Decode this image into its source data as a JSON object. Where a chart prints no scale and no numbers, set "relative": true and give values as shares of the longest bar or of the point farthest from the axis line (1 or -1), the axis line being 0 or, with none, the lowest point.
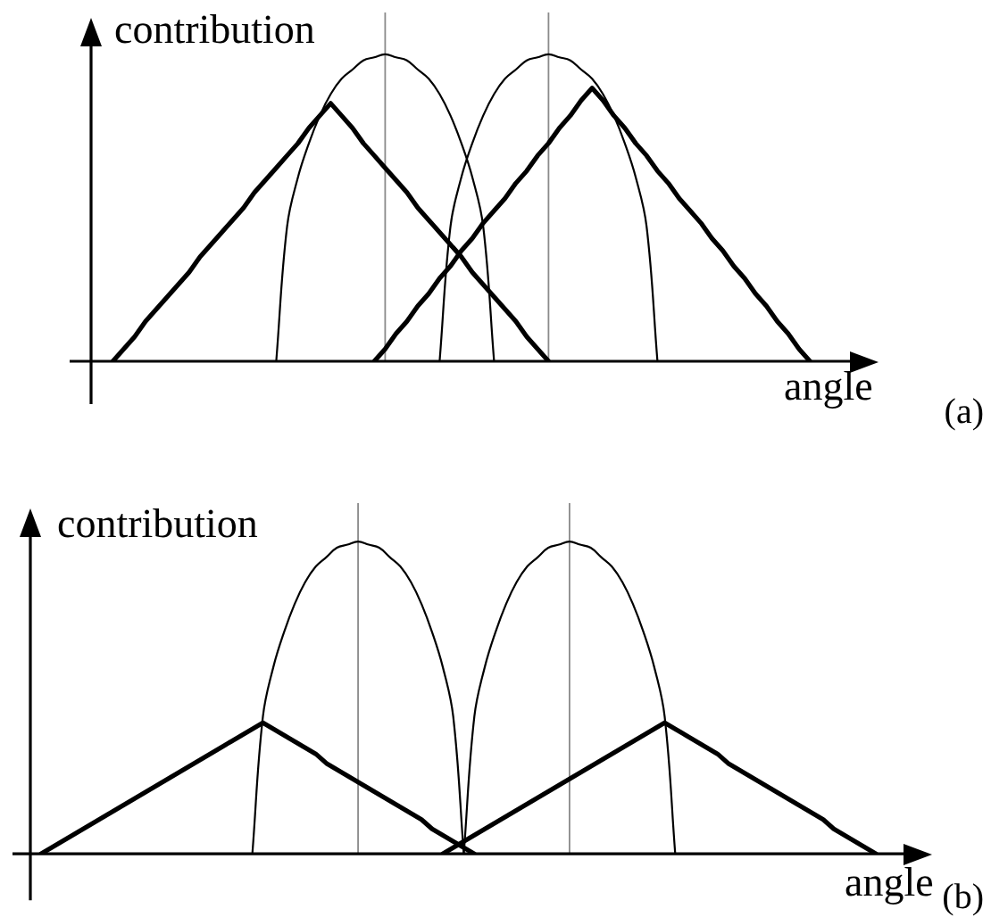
{
  "chart_data": [
    {
      "type": "line",
      "xlabel": "angle",
      "ylabel": "contribution",
      "annotations": [
        "(a)"
      ],
      "relative": true,
      "tick_labels": false,
      "categories": [
        null,
        null,
        null,
        null,
        null,
        null,
        null,
        null,
        null,
        null,
        null,
        null,
        null,
        null,
        null,
        null,
        null,
        null,
        null,
        null,
        null,
        null,
        null,
        null,
        null,
        null,
        null,
        null,
        null,
        null,
        null,
        null,
        null,
        null,
        null,
        null,
        null,
        null,
        null,
        null,
        null,
        null,
        null,
        null,
        null,
        null,
        null,
        null,
        null,
        null,
        null,
        null,
        null,
        null,
        null,
        null,
        null,
        null,
        null,
        null,
        null,
        null,
        null,
        null,
        null,
        null,
        null,
        null,
        null,
        null,
        null
      ],
      "series": [
        {
          "color": "#000000",
          "values": [
            null,
            null,
            0,
            0.04,
            0.08,
            0.13,
            0.17,
            0.21,
            0.25,
            0.29,
            0.34,
            0.38,
            0.42,
            0.46,
            0.5,
            0.55,
            0.59,
            0.63,
            0.67,
            0.71,
            0.76,
            0.8,
            0.84,
            0.8,
            0.76,
            0.71,
            0.67,
            0.63,
            0.59,
            0.55,
            0.5,
            0.46,
            0.42,
            0.38,
            0.34,
            0.29,
            0.25,
            0.21,
            0.17,
            0.13,
            0.08,
            0.04,
            0,
            null,
            null,
            null,
            null,
            null,
            null,
            null,
            null,
            null,
            null,
            null,
            null,
            null,
            null,
            null,
            null,
            null,
            null,
            null,
            null,
            null,
            null,
            null,
            null,
            null,
            null,
            null,
            null
          ]
        },
        {
          "color": "#000000",
          "values": [
            null,
            null,
            null,
            null,
            null,
            null,
            null,
            null,
            null,
            null,
            null,
            null,
            null,
            null,
            null,
            null,
            null,
            null,
            null,
            null,
            null,
            null,
            null,
            null,
            null,
            null,
            0,
            0.04,
            0.09,
            0.13,
            0.18,
            0.22,
            0.27,
            0.31,
            0.36,
            0.4,
            0.45,
            0.49,
            0.53,
            0.58,
            0.62,
            0.67,
            0.71,
            0.76,
            0.8,
            0.85,
            0.89,
            0.85,
            0.8,
            0.76,
            0.71,
            0.67,
            0.62,
            0.58,
            0.53,
            0.49,
            0.45,
            0.4,
            0.36,
            0.31,
            0.27,
            0.22,
            0.18,
            0.13,
            0.09,
            0.04,
            0,
            null,
            null,
            null,
            null
          ]
        },
        {
          "color": "#000000",
          "values": [
            null,
            null,
            null,
            null,
            null,
            null,
            null,
            null,
            null,
            null,
            null,
            null,
            null,
            null,
            null,
            null,
            null,
            0,
            0.44,
            0.6,
            0.71,
            0.8,
            0.87,
            0.92,
            0.95,
            0.98,
            0.99,
            1,
            0.99,
            0.98,
            0.95,
            0.92,
            0.87,
            0.8,
            0.71,
            0.6,
            0.44,
            0,
            null,
            null,
            null,
            null,
            null,
            null,
            null,
            null,
            null,
            null,
            null,
            null,
            null,
            null,
            null,
            null,
            null,
            null,
            null,
            null,
            null,
            null,
            null,
            null,
            null,
            null,
            null,
            null,
            null,
            null,
            null,
            null,
            null
          ]
        },
        {
          "color": "#000000",
          "values": [
            null,
            null,
            null,
            null,
            null,
            null,
            null,
            null,
            null,
            null,
            null,
            null,
            null,
            null,
            null,
            null,
            null,
            null,
            null,
            null,
            null,
            null,
            null,
            null,
            null,
            null,
            null,
            null,
            null,
            null,
            null,
            null,
            0,
            0.44,
            0.6,
            0.71,
            0.8,
            0.87,
            0.92,
            0.95,
            0.98,
            0.99,
            1,
            0.99,
            0.98,
            0.95,
            0.92,
            0.87,
            0.8,
            0.71,
            0.6,
            0.44,
            0,
            null,
            null,
            null,
            null,
            null,
            null,
            null,
            null,
            null,
            null,
            null,
            null,
            null,
            null,
            null,
            null,
            null,
            null
          ]
        }
      ]
    },
    {
      "type": "line",
      "xlabel": "angle",
      "ylabel": "contribution",
      "annotations": [
        "(b)"
      ],
      "relative": true,
      "tick_labels": false,
      "categories": [
        null,
        null,
        null,
        null,
        null,
        null,
        null,
        null,
        null,
        null,
        null,
        null,
        null,
        null,
        null,
        null,
        null,
        null,
        null,
        null,
        null,
        null,
        null,
        null,
        null,
        null,
        null,
        null,
        null,
        null,
        null,
        null,
        null,
        null,
        null,
        null,
        null,
        null,
        null,
        null,
        null,
        null,
        null,
        null,
        null,
        null,
        null,
        null,
        null,
        null,
        null,
        null,
        null,
        null,
        null,
        null,
        null,
        null,
        null,
        null,
        null,
        null,
        null,
        null,
        null,
        null,
        null,
        null,
        null,
        null,
        null,
        null,
        null,
        null,
        null,
        null,
        null,
        null,
        null,
        null,
        null,
        null,
        null,
        null
      ],
      "series": [
        {
          "color": "#000000",
          "values": [
            null,
            0,
            0.02,
            0.04,
            0.06,
            0.08,
            0.1,
            0.12,
            0.14,
            0.16,
            0.18,
            0.2,
            0.22,
            0.24,
            0.26,
            0.28,
            0.3,
            0.32,
            0.34,
            0.36,
            0.38,
            0.4,
            0.42,
            0.4,
            0.38,
            0.36,
            0.34,
            0.32,
            0.29,
            0.27,
            0.25,
            0.23,
            0.21,
            0.19,
            0.17,
            0.15,
            0.13,
            0.11,
            0.08,
            0.06,
            0.04,
            0.02,
            0,
            null,
            null,
            null,
            null,
            null,
            null,
            null,
            null,
            null,
            null,
            null,
            null,
            null,
            null,
            null,
            null,
            null,
            null,
            null,
            null,
            null,
            null,
            null,
            null,
            null,
            null,
            null,
            null,
            null,
            null,
            null,
            null,
            null,
            null,
            null,
            null,
            null,
            null,
            null,
            null,
            null
          ]
        },
        {
          "color": "#000000",
          "values": [
            null,
            null,
            null,
            null,
            null,
            null,
            null,
            null,
            null,
            null,
            null,
            null,
            null,
            null,
            null,
            null,
            null,
            null,
            null,
            null,
            null,
            null,
            null,
            null,
            null,
            null,
            null,
            null,
            null,
            null,
            null,
            null,
            null,
            null,
            null,
            null,
            null,
            null,
            null,
            0,
            0.02,
            0.04,
            0.06,
            0.08,
            0.1,
            0.12,
            0.14,
            0.16,
            0.18,
            0.2,
            0.22,
            0.24,
            0.26,
            0.28,
            0.3,
            0.32,
            0.34,
            0.36,
            0.38,
            0.4,
            0.42,
            0.4,
            0.38,
            0.36,
            0.34,
            0.32,
            0.29,
            0.27,
            0.25,
            0.23,
            0.21,
            0.19,
            0.17,
            0.15,
            0.13,
            0.11,
            0.08,
            0.06,
            0.04,
            0.02,
            0,
            null,
            null,
            null
          ]
        },
        {
          "color": "#000000",
          "values": [
            null,
            null,
            null,
            null,
            null,
            null,
            null,
            null,
            null,
            null,
            null,
            null,
            null,
            null,
            null,
            null,
            null,
            null,
            null,
            null,
            null,
            0,
            0.44,
            0.6,
            0.71,
            0.8,
            0.87,
            0.92,
            0.95,
            0.98,
            0.99,
            1,
            0.99,
            0.98,
            0.95,
            0.92,
            0.87,
            0.8,
            0.71,
            0.6,
            0.44,
            0,
            null,
            null,
            null,
            null,
            null,
            null,
            null,
            null,
            null,
            null,
            null,
            null,
            null,
            null,
            null,
            null,
            null,
            null,
            null,
            null,
            null,
            null,
            null,
            null,
            null,
            null,
            null,
            null,
            null,
            null,
            null,
            null,
            null,
            null,
            null,
            null,
            null,
            null,
            null,
            null,
            null,
            null
          ]
        },
        {
          "color": "#000000",
          "values": [
            null,
            null,
            null,
            null,
            null,
            null,
            null,
            null,
            null,
            null,
            null,
            null,
            null,
            null,
            null,
            null,
            null,
            null,
            null,
            null,
            null,
            null,
            null,
            null,
            null,
            null,
            null,
            null,
            null,
            null,
            null,
            null,
            null,
            null,
            null,
            null,
            null,
            null,
            null,
            null,
            null,
            0,
            0.44,
            0.6,
            0.71,
            0.8,
            0.87,
            0.92,
            0.95,
            0.98,
            0.99,
            1,
            0.99,
            0.98,
            0.95,
            0.92,
            0.87,
            0.8,
            0.71,
            0.6,
            0.44,
            0,
            null,
            null,
            null,
            null,
            null,
            null,
            null,
            null,
            null,
            null,
            null,
            null,
            null,
            null,
            null,
            null,
            null,
            null,
            null,
            null,
            null,
            null
          ]
        }
      ]
    }
  ]
}
